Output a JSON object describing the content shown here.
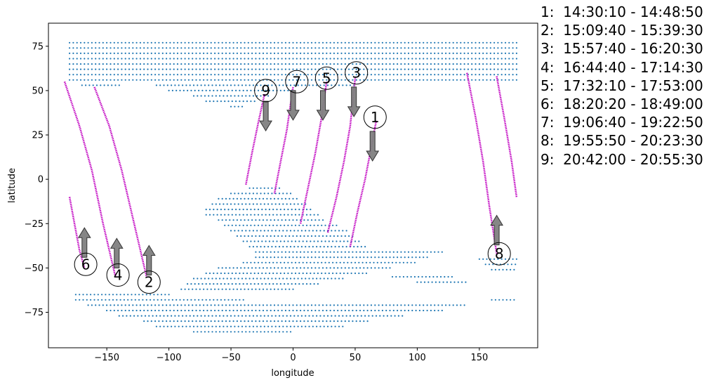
{
  "chart_data": {
    "type": "scatter",
    "xlabel": "longitude",
    "ylabel": "latitude",
    "xlim": [
      -197,
      197
    ],
    "ylim": [
      -95,
      88
    ],
    "xticks": [
      -150,
      -100,
      -50,
      0,
      50,
      100,
      150
    ],
    "yticks": [
      -75,
      -50,
      -25,
      0,
      25,
      50,
      75
    ],
    "grid": false,
    "colors": {
      "points": "#1f77b4",
      "track": "#c000c0",
      "arrow": "#808080"
    },
    "tracks": [
      {
        "label": "1",
        "time": "14:30:10 - 14:48:50",
        "path": [
          [
            46,
            -38
          ],
          [
            52,
            -18
          ],
          [
            58,
            0
          ],
          [
            63,
            18
          ],
          [
            67,
            33
          ]
        ],
        "direction": "south",
        "label_pos": [
          66,
          35
        ],
        "arrow_at": [
          64,
          27
        ]
      },
      {
        "label": "2",
        "time": "15:09:40 - 15:39:30",
        "path": [
          [
            -160,
            52
          ],
          [
            -148,
            30
          ],
          [
            -138,
            5
          ],
          [
            -128,
            -25
          ],
          [
            -118,
            -55
          ]
        ],
        "direction": "north",
        "label_pos": [
          -116,
          -58
        ],
        "arrow_at": [
          -116,
          -54
        ]
      },
      {
        "label": "3",
        "time": "15:57:40 - 16:20:30",
        "path": [
          [
            28,
            -30
          ],
          [
            35,
            -10
          ],
          [
            41,
            10
          ],
          [
            46,
            30
          ],
          [
            50,
            57
          ]
        ],
        "direction": "south",
        "label_pos": [
          51,
          60
        ],
        "arrow_at": [
          49,
          52
        ]
      },
      {
        "label": "4",
        "time": "16:44:40 - 17:14:30",
        "path": [
          [
            -184,
            55
          ],
          [
            -172,
            30
          ],
          [
            -162,
            5
          ],
          [
            -153,
            -25
          ],
          [
            -143,
            -55
          ]
        ],
        "direction": "north",
        "label_pos": [
          -141,
          -54
        ],
        "arrow_at": [
          -142,
          -50
        ]
      },
      {
        "label": "5",
        "time": "17:32:10 - 17:53:00",
        "path": [
          [
            6,
            -25
          ],
          [
            12,
            -5
          ],
          [
            18,
            15
          ],
          [
            23,
            35
          ],
          [
            27,
            55
          ]
        ],
        "direction": "south",
        "label_pos": [
          27,
          57
        ],
        "arrow_at": [
          24,
          50
        ]
      },
      {
        "label": "6",
        "time": "18:20:20 - 18:49:00",
        "path": [
          [
            -180,
            -10
          ],
          [
            -176,
            -25
          ],
          [
            -172,
            -40
          ],
          [
            -168,
            -50
          ]
        ],
        "direction": "north",
        "label_pos": [
          -167,
          -48
        ],
        "arrow_at": [
          -168,
          -44
        ]
      },
      {
        "label": "7",
        "time": "19:06:40 - 19:22:50",
        "path": [
          [
            -15,
            -8
          ],
          [
            -10,
            10
          ],
          [
            -5,
            28
          ],
          [
            0,
            52
          ]
        ],
        "direction": "south",
        "label_pos": [
          3,
          55
        ],
        "arrow_at": [
          0,
          50
        ]
      },
      {
        "label": "8",
        "time": "19:55:50 - 20:23:30",
        "path": [
          [
            140,
            60
          ],
          [
            147,
            35
          ],
          [
            153,
            10
          ],
          [
            158,
            -15
          ],
          [
            164,
            -42
          ]
        ],
        "direction": "north",
        "label_pos": [
          166,
          -42
        ],
        "arrow_at": [
          164,
          -37
        ]
      },
      {
        "label": "9",
        "time": "20:42:00 - 20:55:30",
        "path": [
          [
            -38,
            -3
          ],
          [
            -33,
            15
          ],
          [
            -28,
            32
          ],
          [
            -23,
            48
          ]
        ],
        "direction": "south",
        "label_pos": [
          -22,
          50
        ],
        "arrow_at": [
          -22,
          44
        ]
      },
      {
        "label": "",
        "time": "",
        "path": [
          [
            164,
            58
          ],
          [
            170,
            35
          ],
          [
            176,
            10
          ],
          [
            180,
            -10
          ]
        ],
        "direction": "",
        "label_pos": null,
        "arrow_at": null
      }
    ],
    "coverage_regions": [
      {
        "name": "north-band",
        "rows": [
          [
            77,
            -180,
            180
          ],
          [
            74,
            -180,
            180
          ],
          [
            71,
            -180,
            180
          ],
          [
            68,
            -180,
            180
          ],
          [
            65,
            -180,
            180
          ],
          [
            62,
            -180,
            180
          ],
          [
            59,
            -180,
            180
          ],
          [
            56,
            -180,
            180
          ],
          [
            53,
            -170,
            -140
          ],
          [
            53,
            -110,
            50
          ],
          [
            50,
            -100,
            0
          ],
          [
            47,
            -80,
            -20
          ],
          [
            44,
            -70,
            -30
          ],
          [
            41,
            -50,
            -40
          ]
        ]
      },
      {
        "name": "south-band",
        "rows": [
          [
            -65,
            -175,
            -100
          ],
          [
            -68,
            -175,
            -40
          ],
          [
            -68,
            160,
            180
          ],
          [
            -71,
            -165,
            140
          ],
          [
            -74,
            -150,
            120
          ],
          [
            -77,
            -140,
            90
          ],
          [
            -80,
            -120,
            60
          ],
          [
            -83,
            -110,
            40
          ],
          [
            -86,
            -80,
            0
          ]
        ]
      },
      {
        "name": "south-america",
        "rows": [
          [
            -5,
            -35,
            -10
          ],
          [
            -8,
            -50,
            0
          ],
          [
            -11,
            -60,
            5
          ],
          [
            -14,
            -65,
            10
          ],
          [
            -17,
            -70,
            15
          ],
          [
            -20,
            -70,
            20
          ],
          [
            -23,
            -60,
            25
          ],
          [
            -26,
            -55,
            35
          ],
          [
            -29,
            -50,
            45
          ],
          [
            -32,
            -45,
            50
          ],
          [
            -35,
            -40,
            55
          ],
          [
            -38,
            -35,
            60
          ],
          [
            -41,
            -30,
            120
          ],
          [
            -44,
            -30,
            110
          ],
          [
            -47,
            -40,
            100
          ],
          [
            -50,
            -60,
            80
          ],
          [
            -53,
            -70,
            60
          ],
          [
            -56,
            -80,
            40
          ],
          [
            -59,
            -85,
            20
          ],
          [
            -62,
            -90,
            0
          ]
        ]
      },
      {
        "name": "east-scatter",
        "rows": [
          [
            -45,
            150,
            180
          ],
          [
            -48,
            155,
            180
          ],
          [
            -51,
            160,
            180
          ],
          [
            -55,
            80,
            130
          ],
          [
            -58,
            100,
            140
          ]
        ]
      }
    ]
  }
}
